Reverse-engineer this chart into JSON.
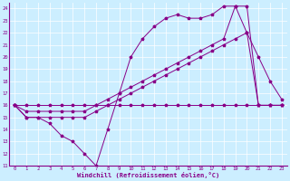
{
  "xlabel": "Windchill (Refroidissement éolien,°C)",
  "background_color": "#cceeff",
  "line_color": "#880088",
  "ylim": [
    11,
    24.5
  ],
  "xlim": [
    -0.5,
    23.5
  ],
  "yticks": [
    11,
    12,
    13,
    14,
    15,
    16,
    17,
    18,
    19,
    20,
    21,
    22,
    23,
    24
  ],
  "xticks": [
    0,
    1,
    2,
    3,
    4,
    5,
    6,
    7,
    8,
    9,
    10,
    11,
    12,
    13,
    14,
    15,
    16,
    17,
    18,
    19,
    20,
    21,
    22,
    23
  ],
  "series": [
    {
      "x": [
        0,
        1,
        2,
        3,
        4,
        5,
        6,
        7,
        8,
        9,
        10,
        11,
        12,
        13,
        14,
        15,
        16,
        17,
        18,
        19,
        20,
        21,
        22,
        23
      ],
      "y": [
        16,
        15,
        15,
        14.5,
        13.5,
        13,
        12,
        11,
        14,
        17,
        20,
        21.5,
        22.5,
        23.2,
        23.5,
        23.2,
        23.2,
        23.5,
        24.2,
        24.2,
        22,
        20,
        18,
        16.5
      ]
    },
    {
      "x": [
        0,
        1,
        2,
        3,
        4,
        5,
        6,
        7,
        8,
        9,
        10,
        11,
        12,
        13,
        14,
        15,
        16,
        17,
        18,
        19,
        20,
        21,
        22,
        23
      ],
      "y": [
        16,
        15,
        15,
        15,
        15,
        15,
        15,
        15.5,
        16,
        16.5,
        17,
        17.5,
        18,
        18.5,
        19,
        19.5,
        20,
        20.5,
        21,
        21.5,
        22,
        16,
        16,
        16
      ]
    },
    {
      "x": [
        0,
        1,
        2,
        3,
        4,
        5,
        6,
        7,
        8,
        9,
        10,
        11,
        12,
        13,
        14,
        15,
        16,
        17,
        18,
        19,
        20,
        21,
        22,
        23
      ],
      "y": [
        16,
        15.5,
        15.5,
        15.5,
        15.5,
        15.5,
        15.5,
        16,
        16.5,
        17,
        17.5,
        18,
        18.5,
        19,
        19.5,
        20,
        20.5,
        21,
        21.5,
        24.2,
        24.2,
        16,
        16,
        16
      ]
    },
    {
      "x": [
        0,
        1,
        2,
        3,
        4,
        5,
        6,
        7,
        8,
        9,
        10,
        11,
        12,
        13,
        14,
        15,
        16,
        17,
        18,
        19,
        20,
        21,
        22,
        23
      ],
      "y": [
        16,
        16,
        16,
        16,
        16,
        16,
        16,
        16,
        16,
        16,
        16,
        16,
        16,
        16,
        16,
        16,
        16,
        16,
        16,
        16,
        16,
        16,
        16,
        16
      ]
    }
  ]
}
